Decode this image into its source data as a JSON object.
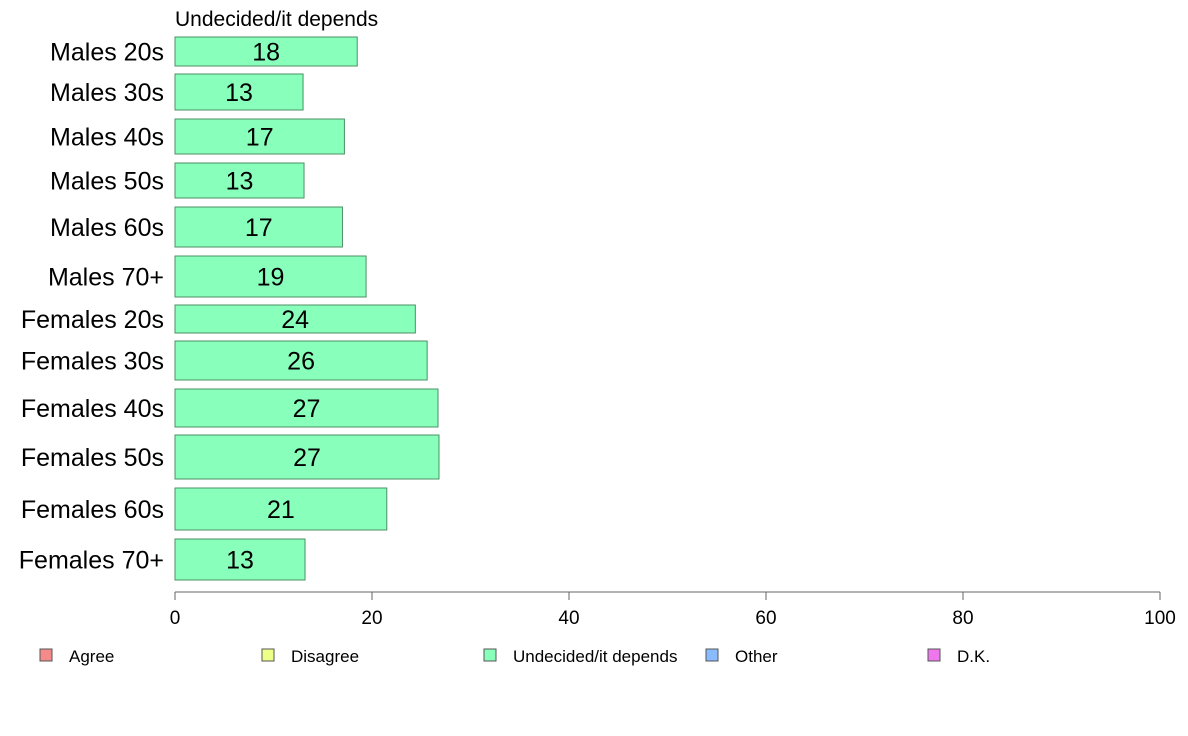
{
  "chart_data": {
    "type": "bar",
    "orientation": "horizontal",
    "title": "Undecided/it depends",
    "categories": [
      "Males 20s",
      "Males 30s",
      "Males 40s",
      "Males 50s",
      "Males 60s",
      "Males 70+",
      "Females 20s",
      "Females 30s",
      "Females 40s",
      "Females 50s",
      "Females 60s",
      "Females 70+"
    ],
    "series": [
      {
        "name": "Undecided/it depends",
        "values": [
          18.5,
          13,
          17.2,
          13.1,
          17,
          19.4,
          24.4,
          25.6,
          26.7,
          26.8,
          21.5,
          13.2
        ],
        "labels": [
          "18",
          "13",
          "17",
          "13",
          "17",
          "19",
          "24",
          "26",
          "27",
          "27",
          "21",
          "13"
        ],
        "color": "#88ffbb"
      }
    ],
    "xlim": [
      0,
      100
    ],
    "xticks": [
      0,
      20,
      40,
      60,
      80,
      100
    ],
    "xtick_labels": [
      "0",
      "20",
      "40",
      "60",
      "80",
      "100"
    ],
    "grid": false,
    "legend_position": "bottom",
    "legend": [
      {
        "label": "Agree",
        "color": "#f48a8a"
      },
      {
        "label": "Disagree",
        "color": "#eeff88"
      },
      {
        "label": "Undecided/it depends",
        "color": "#88ffbb"
      },
      {
        "label": "Other",
        "color": "#88bbff"
      },
      {
        "label": "D.K.",
        "color": "#ee77ee"
      }
    ]
  }
}
